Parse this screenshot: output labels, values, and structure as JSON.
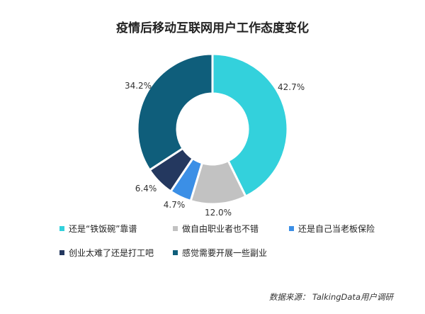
{
  "chart_data": {
    "type": "pie",
    "title": "疫情后移动互联网用户工作态度变化",
    "categories": [
      "还是“铁饭碗”靠谱",
      "做自由职业者也不错",
      "还是自己当老板保险",
      "创业太难了还是打工吧",
      "感觉需要开展一些副业"
    ],
    "values": [
      42.7,
      12.0,
      4.7,
      6.4,
      34.2
    ],
    "value_labels": [
      "42.7%",
      "12.0%",
      "4.7%",
      "6.4%",
      "34.2%"
    ],
    "colors": [
      "#33D1DC",
      "#C2C2C2",
      "#3B8FE6",
      "#24385F",
      "#0F5E7B"
    ],
    "legend_position": "bottom"
  },
  "source": "数据来源： TalkingData用户调研"
}
